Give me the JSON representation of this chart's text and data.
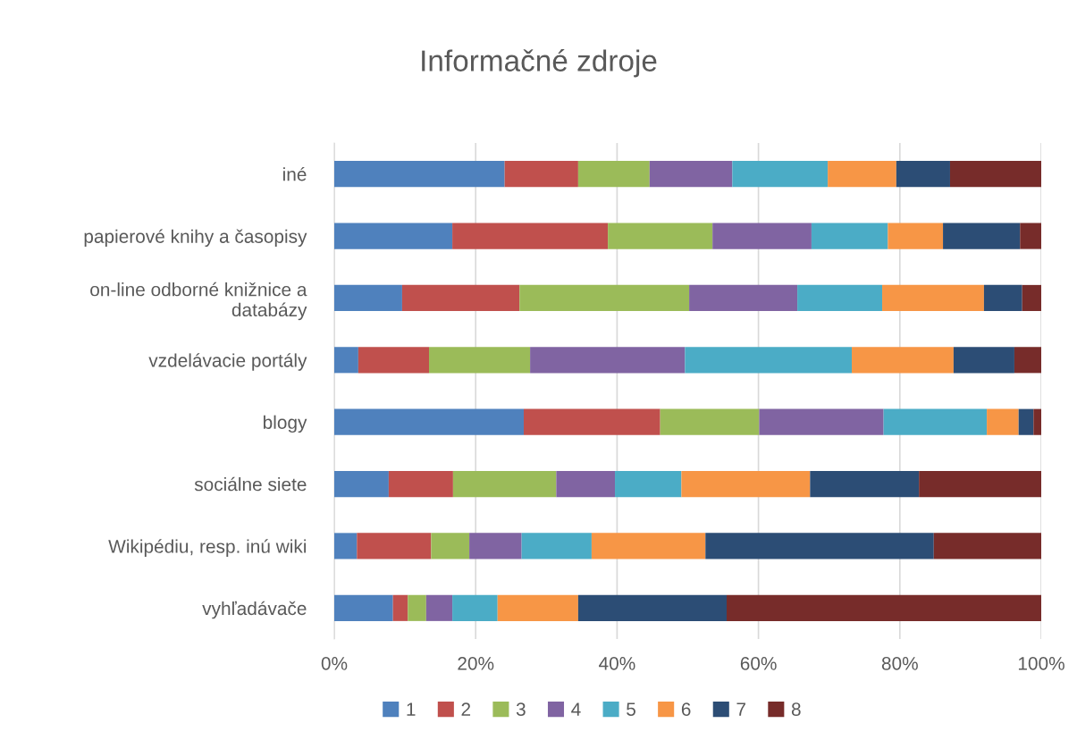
{
  "chart_data": {
    "type": "bar",
    "title": "Informačné zdroje",
    "orientation": "horizontal",
    "stacked": true,
    "categories": [
      "iné",
      "papierové knihy a časopisy",
      "on-line odborné knižnice a databázy",
      "vzdelávacie portály",
      "blogy",
      "sociálne siete",
      "Wikipédiu, resp. inú wiki",
      "vyhľadávače"
    ],
    "series": [
      {
        "name": "1",
        "color": "#4f81bd",
        "values": [
          24.1,
          16.7,
          9.6,
          3.4,
          26.8,
          7.7,
          3.2,
          8.3
        ]
      },
      {
        "name": "2",
        "color": "#c0504d",
        "values": [
          10.4,
          22.0,
          16.6,
          10.0,
          19.3,
          9.1,
          10.5,
          2.1
        ]
      },
      {
        "name": "3",
        "color": "#9bbb59",
        "values": [
          10.1,
          14.8,
          24.0,
          14.3,
          14.0,
          14.6,
          5.4,
          2.6
        ]
      },
      {
        "name": "4",
        "color": "#8064a2",
        "values": [
          11.7,
          14.0,
          15.3,
          21.9,
          17.6,
          8.3,
          7.4,
          3.7
        ]
      },
      {
        "name": "5",
        "color": "#4bacc6",
        "values": [
          13.5,
          10.8,
          12.0,
          23.6,
          14.6,
          9.4,
          9.9,
          6.4
        ]
      },
      {
        "name": "6",
        "color": "#f79646",
        "values": [
          9.7,
          7.8,
          14.4,
          14.4,
          4.5,
          18.2,
          16.1,
          11.4
        ]
      },
      {
        "name": "7",
        "color": "#2c4d75",
        "values": [
          7.6,
          10.9,
          5.4,
          8.6,
          2.1,
          15.4,
          32.3,
          21.0
        ]
      },
      {
        "name": "8",
        "color": "#772c2a",
        "values": [
          12.9,
          3.0,
          2.7,
          3.8,
          1.1,
          17.3,
          15.2,
          44.5
        ]
      }
    ],
    "xlim": [
      0,
      100
    ],
    "xticks": [
      {
        "value": 0,
        "label": "0%"
      },
      {
        "value": 20,
        "label": "20%"
      },
      {
        "value": 40,
        "label": "40%"
      },
      {
        "value": 60,
        "label": "60%"
      },
      {
        "value": 80,
        "label": "80%"
      },
      {
        "value": 100,
        "label": "100%"
      }
    ],
    "grid": "x",
    "legend": "bottom"
  }
}
